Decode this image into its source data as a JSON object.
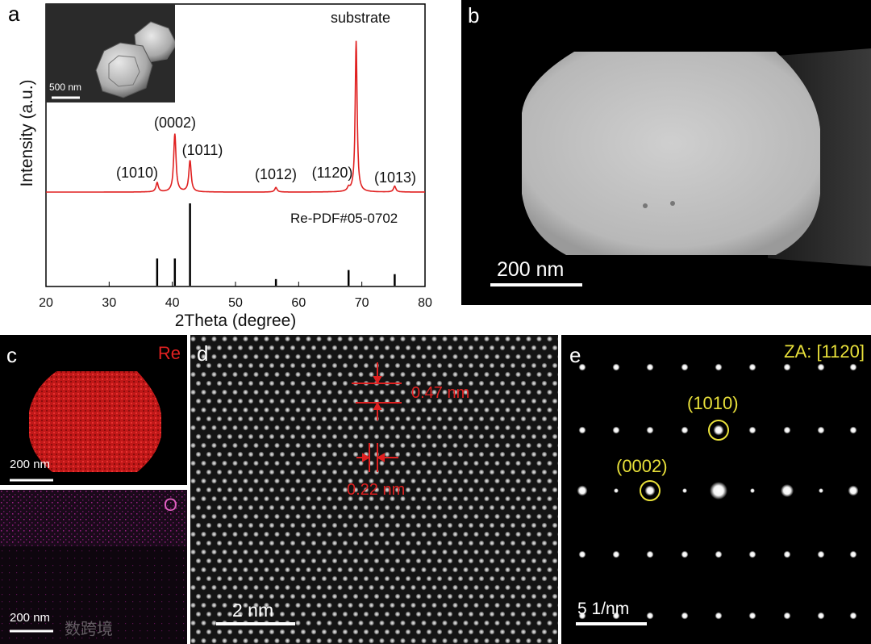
{
  "panels": {
    "a": {
      "label": "a",
      "inset_scale": "500 nm",
      "substrate_label": "substrate",
      "ref_label": "Re-PDF#05-0702",
      "peaks": [
        {
          "pos": 37.6,
          "h": 0.08,
          "hkl": "(1010)"
        },
        {
          "pos": 40.4,
          "h": 0.5,
          "hkl": "(0002)"
        },
        {
          "pos": 42.8,
          "h": 0.27,
          "hkl": "(1011)"
        },
        {
          "pos": 56.4,
          "h": 0.04,
          "hkl": "(1012)"
        },
        {
          "pos": 67.9,
          "h": 0.03,
          "hkl": "(1120)"
        },
        {
          "pos": 69.1,
          "h": 1.3,
          "hkl": ""
        },
        {
          "pos": 75.2,
          "h": 0.05,
          "hkl": "(1013)"
        }
      ]
    },
    "b": {
      "label": "b",
      "scale": "200 nm"
    },
    "c": {
      "label": "c",
      "element_top": "Re",
      "element_bottom": "O",
      "scale_top": "200 nm",
      "scale_bottom": "200 nm"
    },
    "d": {
      "label": "d",
      "scale": "2 nm",
      "d1": "0.47 nm",
      "d2": "0.22 nm"
    },
    "e": {
      "label": "e",
      "za": "ZA: [1120]",
      "spot1": "(1010)",
      "spot2": "(0002)",
      "scale": "5 1/nm"
    }
  },
  "chart_data": {
    "type": "line",
    "xlabel": "2Theta (degree)",
    "ylabel": "Intensity (a.u.)",
    "xlim": [
      20,
      80
    ],
    "xticks": [
      20,
      30,
      40,
      50,
      60,
      70,
      80
    ],
    "series": [
      {
        "name": "",
        "color": "#e02020",
        "peaks_2theta": [
          37.6,
          40.4,
          42.8,
          56.4,
          67.9,
          69.1,
          75.2
        ]
      }
    ],
    "reference": {
      "name": "Re-PDF#05-0702",
      "positions": [
        37.6,
        40.4,
        42.8,
        56.4,
        67.9,
        75.2
      ],
      "intensities": [
        0.33,
        0.33,
        1.0,
        0.08,
        0.19,
        0.14
      ]
    },
    "annotations": [
      "(1010)",
      "(0002)",
      "(1011)",
      "(1012)",
      "(1120)",
      "(1013)",
      "substrate"
    ]
  },
  "watermark": "数跨境"
}
